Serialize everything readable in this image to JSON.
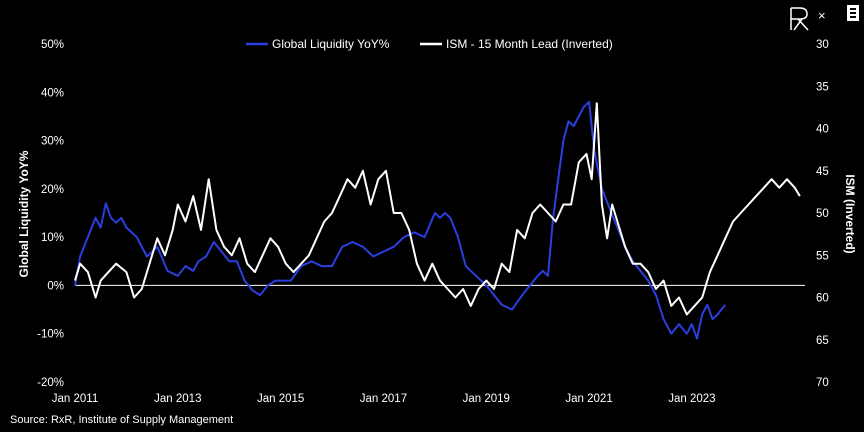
{
  "chart_data": {
    "type": "line",
    "legend_position": "top",
    "grid": false,
    "x_ticks": [
      "Jan 2011",
      "Jan 2013",
      "Jan 2015",
      "Jan 2017",
      "Jan 2019",
      "Jan 2021",
      "Jan 2023"
    ],
    "x_range": [
      2011.0,
      2025.2
    ],
    "y_left": {
      "label": "Global Liquidity YoY%",
      "range": [
        -20,
        50
      ],
      "ticks": [
        "50%",
        "40%",
        "30%",
        "20%",
        "10%",
        "0%",
        "-10%",
        "-20%"
      ],
      "tick_values": [
        50,
        40,
        30,
        20,
        10,
        0,
        -10,
        -20
      ]
    },
    "y_right": {
      "label": "ISM (Inverted)",
      "range": [
        30,
        70
      ],
      "inverted": true,
      "ticks": [
        "30",
        "35",
        "40",
        "45",
        "50",
        "55",
        "60",
        "65",
        "70"
      ],
      "tick_values": [
        30,
        35,
        40,
        45,
        50,
        55,
        60,
        65,
        70
      ]
    },
    "series": [
      {
        "name": "Global Liquidity YoY%",
        "axis": "left",
        "color": "#2b3fe0",
        "x": [
          2011.0,
          2011.1,
          2011.25,
          2011.4,
          2011.5,
          2011.6,
          2011.7,
          2011.8,
          2011.9,
          2012.0,
          2012.2,
          2012.4,
          2012.6,
          2012.8,
          2013.0,
          2013.15,
          2013.3,
          2013.4,
          2013.55,
          2013.7,
          2013.85,
          2014.0,
          2014.15,
          2014.3,
          2014.45,
          2014.6,
          2014.75,
          2014.9,
          2015.0,
          2015.2,
          2015.4,
          2015.6,
          2015.8,
          2016.0,
          2016.2,
          2016.4,
          2016.6,
          2016.8,
          2017.0,
          2017.2,
          2017.4,
          2017.6,
          2017.8,
          2018.0,
          2018.1,
          2018.2,
          2018.3,
          2018.45,
          2018.6,
          2018.8,
          2019.0,
          2019.15,
          2019.3,
          2019.5,
          2019.7,
          2019.85,
          2020.0,
          2020.1,
          2020.2,
          2020.3,
          2020.4,
          2020.5,
          2020.6,
          2020.7,
          2020.8,
          2020.9,
          2021.0,
          2021.1,
          2021.25,
          2021.4,
          2021.55,
          2021.7,
          2021.85,
          2022.0,
          2022.15,
          2022.3,
          2022.45,
          2022.6,
          2022.75,
          2022.9,
          2023.0,
          2023.1,
          2023.2,
          2023.3,
          2023.4,
          2023.5,
          2023.65
        ],
        "y": [
          0,
          6,
          10,
          14,
          12,
          17,
          14,
          13,
          14,
          12,
          10,
          6,
          8,
          3,
          2,
          4,
          3,
          5,
          6,
          9,
          7,
          5,
          5,
          1,
          -1,
          -2,
          0,
          1,
          1,
          1,
          4,
          5,
          4,
          4,
          8,
          9,
          8,
          6,
          7,
          8,
          10,
          11,
          10,
          15,
          14,
          15,
          14,
          10,
          4,
          2,
          0,
          -2,
          -4,
          -5,
          -2,
          0,
          2,
          3,
          2,
          14,
          22,
          30,
          34,
          33,
          35,
          37,
          38,
          28,
          20,
          16,
          12,
          8,
          5,
          3,
          1,
          -2,
          -7,
          -10,
          -8,
          -10,
          -8,
          -11,
          -6,
          -4,
          -7,
          -6,
          -4
        ]
      },
      {
        "name": "ISM - 15 Month Lead (Inverted)",
        "axis": "right",
        "color": "#ffffff",
        "x": [
          2011.0,
          2011.1,
          2011.25,
          2011.4,
          2011.5,
          2011.65,
          2011.8,
          2012.0,
          2012.15,
          2012.3,
          2012.45,
          2012.6,
          2012.75,
          2012.9,
          2013.0,
          2013.15,
          2013.3,
          2013.45,
          2013.6,
          2013.75,
          2013.9,
          2014.05,
          2014.2,
          2014.35,
          2014.5,
          2014.65,
          2014.8,
          2014.95,
          2015.1,
          2015.25,
          2015.4,
          2015.55,
          2015.7,
          2015.85,
          2016.0,
          2016.15,
          2016.3,
          2016.45,
          2016.6,
          2016.75,
          2016.9,
          2017.05,
          2017.2,
          2017.35,
          2017.5,
          2017.65,
          2017.8,
          2017.95,
          2018.1,
          2018.25,
          2018.4,
          2018.55,
          2018.7,
          2018.85,
          2019.0,
          2019.15,
          2019.3,
          2019.45,
          2019.6,
          2019.75,
          2019.9,
          2020.05,
          2020.2,
          2020.35,
          2020.5,
          2020.65,
          2020.8,
          2020.95,
          2021.05,
          2021.15,
          2021.25,
          2021.35,
          2021.45,
          2021.55,
          2021.7,
          2021.85,
          2022.0,
          2022.15,
          2022.3,
          2022.45,
          2022.6,
          2022.75,
          2022.9,
          2023.05,
          2023.2,
          2023.35,
          2023.5,
          2023.65,
          2023.8,
          2023.95,
          2024.1,
          2024.25,
          2024.4,
          2024.55,
          2024.7,
          2024.85,
          2025.0,
          2025.1
        ],
        "y": [
          58,
          56,
          57,
          60,
          58,
          57,
          56,
          57,
          60,
          59,
          56,
          53,
          55,
          52,
          49,
          51,
          48,
          52,
          46,
          52,
          54,
          55,
          53,
          56,
          57,
          55,
          53,
          54,
          56,
          57,
          56,
          55,
          53,
          51,
          50,
          48,
          46,
          47,
          45,
          49,
          46,
          45,
          50,
          50,
          52,
          56,
          58,
          56,
          58,
          59,
          60,
          59,
          61,
          59,
          58,
          59,
          56,
          57,
          52,
          53,
          50,
          49,
          50,
          51,
          49,
          49,
          44,
          43,
          46,
          37,
          49,
          53,
          49,
          51,
          54,
          56,
          56,
          57,
          59,
          58,
          61,
          60,
          62,
          61,
          60,
          57,
          55,
          53,
          51,
          50,
          49,
          48,
          47,
          46,
          47,
          46,
          47,
          48
        ]
      }
    ]
  },
  "legend": {
    "series1_label": "Global Liquidity YoY%",
    "series2_label": "ISM - 15 Month Lead (Inverted)"
  },
  "source_text": "Source: RxR, Institute of Supply Management",
  "close_label": "×"
}
